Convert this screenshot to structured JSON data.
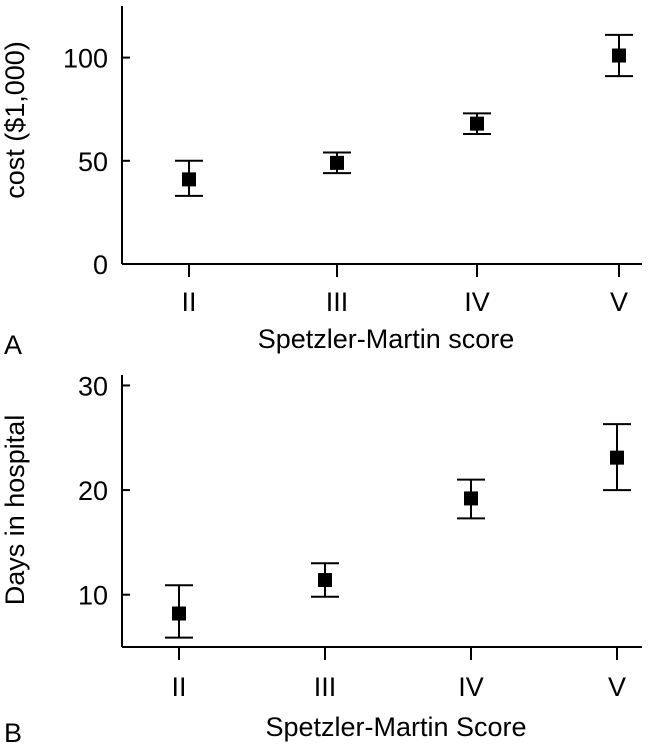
{
  "chart_data": [
    {
      "type": "scatter",
      "panel_label": "A",
      "xlabel": "Spetzler-Martin score",
      "ylabel": "cost ($1,000)",
      "categories": [
        "II",
        "III",
        "IV",
        "V"
      ],
      "values": [
        41,
        49,
        68,
        101
      ],
      "error_low": [
        33,
        44,
        63,
        91
      ],
      "error_high": [
        50,
        54,
        73,
        111
      ],
      "ylim": [
        0,
        125
      ],
      "yticks": [
        0,
        50,
        100
      ],
      "ytick_labels": [
        "0",
        "50",
        "100"
      ],
      "grid": false,
      "legend": "none"
    },
    {
      "type": "scatter",
      "panel_label": "B",
      "xlabel": "Spetzler-Martin Score",
      "ylabel": "Days in hospital",
      "categories": [
        "II",
        "III",
        "IV",
        "V"
      ],
      "values": [
        8.2,
        11.4,
        19.2,
        23.1
      ],
      "error_low": [
        5.9,
        9.8,
        17.3,
        20
      ],
      "error_high": [
        10.9,
        13,
        21,
        26.3
      ],
      "ylim": [
        5,
        31
      ],
      "yticks": [
        10,
        20,
        30
      ],
      "ytick_labels": [
        "10",
        "20",
        "30"
      ],
      "grid": false,
      "legend": "none"
    }
  ]
}
